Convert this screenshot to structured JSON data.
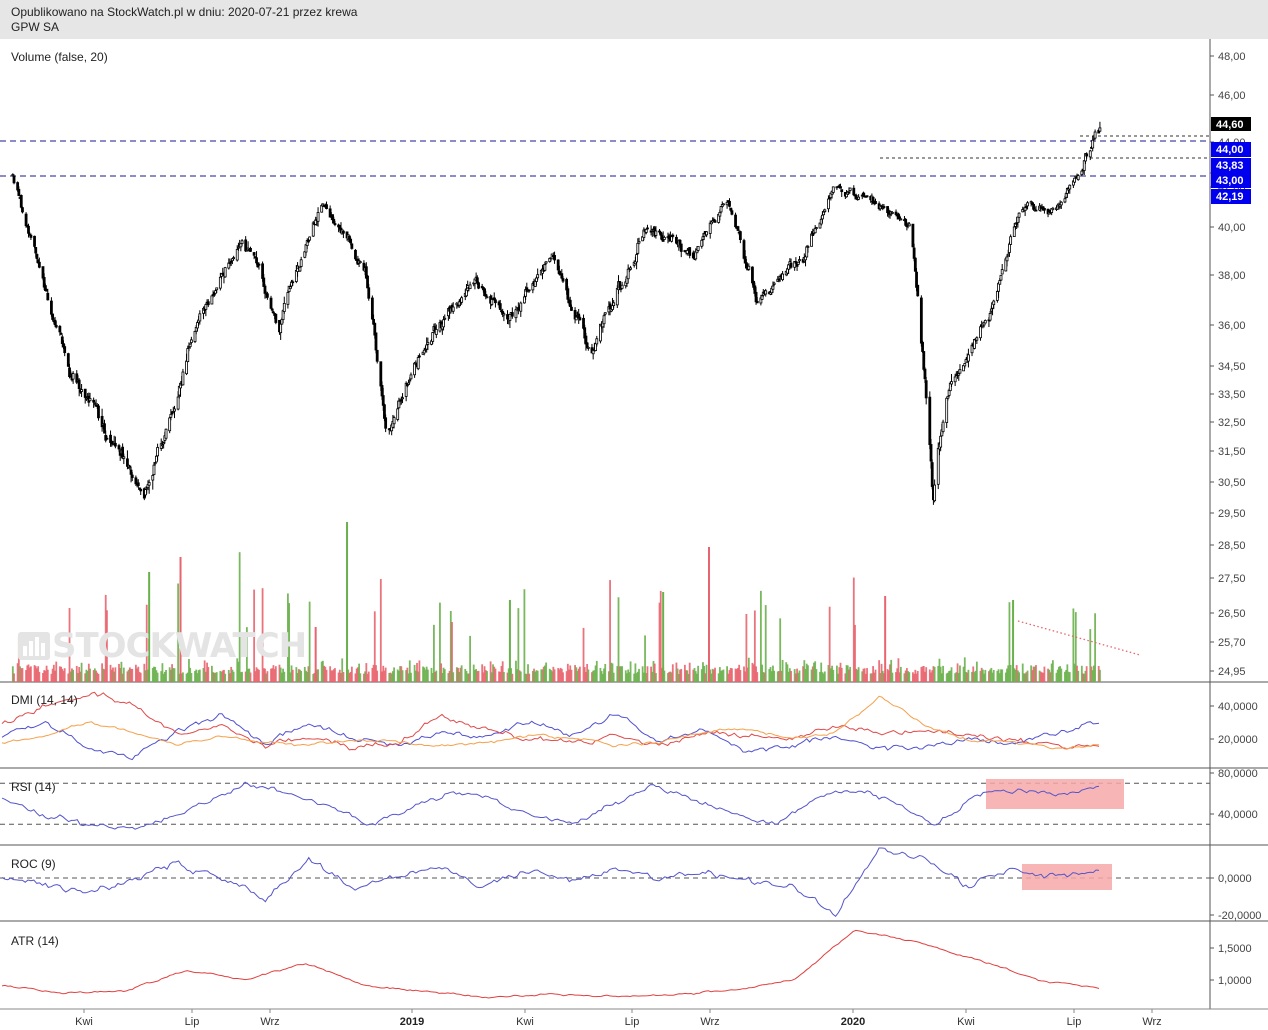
{
  "header": {
    "line1": "Opublikowano na StockWatch.pl w dniu: 2020-07-21 przez krewa",
    "line2": "GPW SA"
  },
  "watermark": "STOCKWATCH",
  "colors": {
    "up": "#6ab04c",
    "down": "#e8646e",
    "dmi_plus": "#5050d0",
    "dmi_minus": "#e04a4a",
    "adx": "#f5a04a",
    "rsi": "#5555cc",
    "roc": "#5555cc",
    "atr": "#e04040",
    "level_line": "#1a1a8c",
    "tag_bg": "#0000ee",
    "last_tag_bg": "#000000",
    "highlight": "#f7a8a8"
  },
  "chart_data": [
    {
      "panel": "price",
      "type": "candlestick",
      "title": "Volume (false, 20)",
      "y_ticks": [
        "48,00",
        "46,00",
        "44,00",
        "43,00",
        "42,00",
        "40,00",
        "38,00",
        "36,00",
        "34,50",
        "33,50",
        "32,50",
        "31,50",
        "30,50",
        "29,50",
        "28,50",
        "27,50",
        "26,50",
        "25,70",
        "24,95"
      ],
      "last_price_tag": "44,60",
      "level_tags": [
        "44,00",
        "43,83",
        "43,00",
        "42,19"
      ],
      "levels": [
        44.0,
        43.0
      ],
      "trend_annotation": "dotted red line falling over volume bars, May–Jul 2020",
      "x_labels": [
        "Kwi",
        "Lip",
        "Wrz",
        "2019",
        "Kwi",
        "Lip",
        "Wrz",
        "2020",
        "Kwi",
        "Lip",
        "Wrz"
      ],
      "x_bold_labels": [
        "2019",
        "2020"
      ],
      "keypoints_dates": [
        "2018-02-01",
        "2018-02-15",
        "2018-03-20",
        "2018-05-20",
        "2018-06-15",
        "2018-07-01",
        "2018-08-10",
        "2018-09-10",
        "2018-10-15",
        "2018-11-20",
        "2018-12-08",
        "2019-01-05",
        "2019-02-20",
        "2019-03-20",
        "2019-04-25",
        "2019-05-25",
        "2019-06-20",
        "2019-07-10",
        "2019-08-20",
        "2019-09-15",
        "2019-10-10",
        "2019-11-20",
        "2019-12-15",
        "2020-01-15",
        "2020-02-15",
        "2020-03-05",
        "2020-03-16",
        "2020-03-25",
        "2020-04-20",
        "2020-05-15",
        "2020-06-15",
        "2020-07-21"
      ],
      "keypoints_close": [
        42.8,
        39.5,
        34.4,
        30.0,
        33.2,
        35.7,
        39.6,
        36.2,
        41.0,
        38.0,
        32.3,
        35.0,
        37.8,
        36.3,
        38.9,
        34.8,
        37.4,
        39.9,
        38.7,
        41.5,
        37.1,
        38.9,
        42.0,
        41.2,
        40.2,
        30.1,
        33.6,
        34.3,
        36.2,
        40.6,
        41.0,
        44.6
      ],
      "volume_range": "small daily bars with spikes up to the 29,50 level (Nov 2018)"
    },
    {
      "panel": "dmi",
      "type": "line",
      "title": "DMI (14, 14)",
      "y_ticks": [
        "40,0000",
        "20,0000"
      ],
      "series": [
        {
          "name": "",
          "keypoints": [
            22,
            30,
            14,
            10,
            25,
            35,
            18,
            30,
            20,
            16,
            24,
            20,
            30,
            22,
            35,
            18,
            26,
            12,
            16,
            22,
            14,
            16,
            20,
            18,
            22,
            30
          ]
        },
        {
          "name": "",
          "keypoints": [
            28,
            40,
            48,
            40,
            22,
            28,
            16,
            22,
            14,
            18,
            34,
            26,
            20,
            18,
            22,
            16,
            24,
            22,
            20,
            28,
            24,
            26,
            22,
            20,
            16,
            15
          ]
        },
        {
          "name": "",
          "keypoints": [
            18,
            22,
            30,
            24,
            16,
            22,
            18,
            16,
            20,
            18,
            16,
            18,
            22,
            20,
            16,
            18,
            24,
            26,
            20,
            24,
            46,
            28,
            20,
            18,
            14,
            16
          ]
        }
      ]
    },
    {
      "panel": "rsi",
      "type": "line",
      "title": "RSI (14)",
      "y_ticks": [
        "80,0000",
        "40,0000"
      ],
      "reference_levels": [
        70,
        30
      ],
      "highlight_box": "May–Jul 2020",
      "keypoints": [
        55,
        40,
        30,
        25,
        35,
        50,
        70,
        60,
        50,
        30,
        45,
        60,
        55,
        40,
        30,
        50,
        68,
        55,
        40,
        30,
        55,
        65,
        50,
        30,
        60,
        62,
        58,
        66
      ]
    },
    {
      "panel": "roc",
      "type": "line",
      "title": "ROC (9)",
      "y_ticks": [
        "0,0000",
        "-20,0000"
      ],
      "reference_levels": [
        0
      ],
      "highlight_box": "May–Jul 2020",
      "keypoints": [
        0,
        -4,
        -8,
        0,
        8,
        0,
        -12,
        10,
        -5,
        2,
        6,
        -4,
        4,
        -2,
        6,
        0,
        3,
        -2,
        -5,
        -20,
        16,
        10,
        -4,
        4,
        1,
        5
      ]
    },
    {
      "panel": "atr",
      "type": "line",
      "title": "ATR (14)",
      "y_ticks": [
        "1,5000",
        "1,0000"
      ],
      "keypoints": [
        0.92,
        0.8,
        0.82,
        1.15,
        1.0,
        1.27,
        0.9,
        0.82,
        0.72,
        0.78,
        0.74,
        0.76,
        0.84,
        1.0,
        1.78,
        1.6,
        1.32,
        1.0,
        0.88
      ]
    }
  ]
}
